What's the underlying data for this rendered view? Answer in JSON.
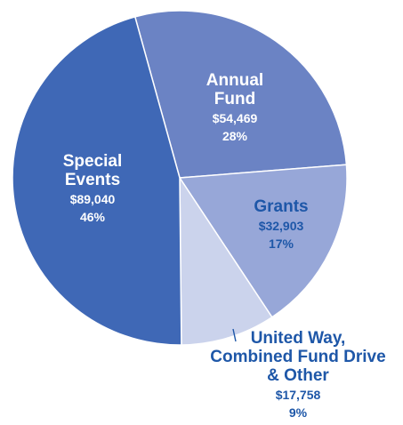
{
  "chart_data": {
    "type": "pie",
    "title": "",
    "slices": [
      {
        "name_lines": [
          "Annual",
          "Fund"
        ],
        "amount": "$54,469",
        "value": 54469,
        "percent": 28,
        "percent_label": "28%",
        "color": "#6b83c4",
        "text_color": "#ffffff"
      },
      {
        "name_lines": [
          "Grants"
        ],
        "amount": "$32,903",
        "value": 32903,
        "percent": 17,
        "percent_label": "17%",
        "color": "#97a7d8",
        "text_color": "#1e57a8"
      },
      {
        "name_lines": [
          "United Way,",
          "Combined Fund Drive",
          "& Other"
        ],
        "amount": "$17,758",
        "value": 17758,
        "percent": 9,
        "percent_label": "9%",
        "color": "#cbd3ec",
        "text_color": "#1e57a8"
      },
      {
        "name_lines": [
          "Special",
          "Events"
        ],
        "amount": "$89,040",
        "value": 89040,
        "percent": 46,
        "percent_label": "46%",
        "color": "#3f68b6",
        "text_color": "#ffffff"
      }
    ],
    "legend": "none",
    "labels": "on-slice"
  }
}
